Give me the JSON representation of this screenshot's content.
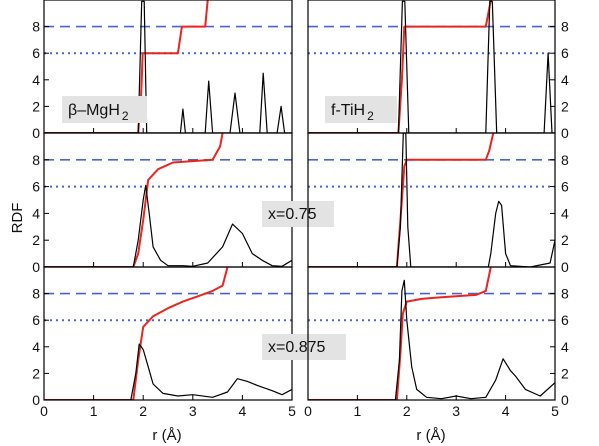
{
  "chart_data": {
    "type": "line",
    "layout": "3x2 grid",
    "ylabel": "RDF",
    "xlabel": "r (Å)",
    "xlim": [
      0,
      5
    ],
    "ylim": [
      0,
      10
    ],
    "x_ticks": [
      "0",
      "1",
      "2",
      "3",
      "4",
      "5"
    ],
    "y_ticks": [
      "0",
      "2",
      "4",
      "6",
      "8"
    ],
    "reference_lines": {
      "dashed": 8,
      "dotted": 6
    },
    "colors": {
      "rdf": "#000000",
      "coordination": "#e8261f",
      "reference": "#4a63d4",
      "label_box": "#e3e3e3"
    },
    "panels": [
      {
        "label_parts": [
          "β–MgH",
          "2"
        ],
        "rdf": [
          [
            0,
            0
          ],
          [
            1.9,
            0
          ],
          [
            1.97,
            9.9
          ],
          [
            2.02,
            9.9
          ],
          [
            2.07,
            0
          ],
          [
            2.75,
            0
          ],
          [
            2.8,
            1.8
          ],
          [
            2.85,
            0
          ],
          [
            3.25,
            0
          ],
          [
            3.32,
            3.9
          ],
          [
            3.4,
            0
          ],
          [
            3.75,
            0
          ],
          [
            3.85,
            3
          ],
          [
            3.95,
            0
          ],
          [
            4.35,
            0
          ],
          [
            4.42,
            4.5
          ],
          [
            4.5,
            0
          ],
          [
            4.7,
            0
          ],
          [
            4.78,
            2
          ],
          [
            4.85,
            0
          ],
          [
            5,
            0
          ]
        ],
        "coordination": [
          [
            0,
            0
          ],
          [
            1.9,
            0
          ],
          [
            1.96,
            3
          ],
          [
            1.99,
            6
          ],
          [
            2.7,
            6
          ],
          [
            2.78,
            8
          ],
          [
            3.25,
            8
          ],
          [
            3.3,
            10
          ]
        ]
      },
      {
        "label_parts": [
          "f-TiH",
          "2"
        ],
        "rdf": [
          [
            0,
            0
          ],
          [
            1.83,
            0
          ],
          [
            1.91,
            9.9
          ],
          [
            1.96,
            9.9
          ],
          [
            2.04,
            0
          ],
          [
            3.6,
            0
          ],
          [
            3.68,
            9.9
          ],
          [
            3.73,
            9.9
          ],
          [
            3.82,
            0
          ],
          [
            4.78,
            0
          ],
          [
            4.86,
            6
          ],
          [
            4.94,
            0
          ],
          [
            5,
            0
          ]
        ],
        "coordination": [
          [
            0,
            0
          ],
          [
            1.83,
            0
          ],
          [
            1.9,
            4
          ],
          [
            1.95,
            8
          ],
          [
            3.6,
            8
          ],
          [
            3.7,
            10
          ]
        ]
      },
      {
        "label_parts": [
          "x=0.75"
        ],
        "rdf": [
          [
            0,
            0
          ],
          [
            1.8,
            0
          ],
          [
            1.9,
            2
          ],
          [
            2.0,
            5
          ],
          [
            2.05,
            6.1
          ],
          [
            2.12,
            4
          ],
          [
            2.2,
            1.5
          ],
          [
            2.35,
            0.5
          ],
          [
            2.5,
            0.1
          ],
          [
            2.8,
            0.1
          ],
          [
            3,
            0.05
          ],
          [
            3.3,
            0.3
          ],
          [
            3.6,
            1.5
          ],
          [
            3.8,
            3.2
          ],
          [
            4.0,
            2.5
          ],
          [
            4.2,
            1
          ],
          [
            4.4,
            0.5
          ],
          [
            4.6,
            0.1
          ],
          [
            4.8,
            0.05
          ],
          [
            5,
            0.5
          ]
        ],
        "coordination": [
          [
            0,
            0
          ],
          [
            1.8,
            0
          ],
          [
            1.9,
            1
          ],
          [
            2.0,
            3.5
          ],
          [
            2.1,
            6.5
          ],
          [
            2.3,
            7.3
          ],
          [
            2.6,
            7.8
          ],
          [
            3.0,
            7.9
          ],
          [
            3.4,
            8
          ],
          [
            3.55,
            9
          ],
          [
            3.6,
            10
          ]
        ]
      },
      {
        "label_parts": [],
        "rdf": [
          [
            0,
            0
          ],
          [
            1.8,
            0
          ],
          [
            1.87,
            3
          ],
          [
            1.93,
            10
          ],
          [
            1.98,
            10
          ],
          [
            2.02,
            3
          ],
          [
            2.08,
            0
          ],
          [
            3.65,
            0
          ],
          [
            3.7,
            1
          ],
          [
            3.8,
            4
          ],
          [
            3.86,
            4.9
          ],
          [
            3.92,
            4.6
          ],
          [
            4.0,
            1
          ],
          [
            4.1,
            0.1
          ],
          [
            4.5,
            0
          ],
          [
            4.9,
            0.3
          ],
          [
            5,
            2
          ]
        ],
        "coordination": [
          [
            0,
            0
          ],
          [
            1.8,
            0
          ],
          [
            1.88,
            4
          ],
          [
            1.95,
            7.5
          ],
          [
            2.0,
            8
          ],
          [
            3.6,
            8
          ],
          [
            3.67,
            8.7
          ],
          [
            3.75,
            10
          ]
        ]
      },
      {
        "label_parts": [
          "x=0.875"
        ],
        "rdf": [
          [
            0,
            0
          ],
          [
            1.75,
            0
          ],
          [
            1.85,
            2
          ],
          [
            1.92,
            4.2
          ],
          [
            2,
            3.8
          ],
          [
            2.1,
            2.5
          ],
          [
            2.2,
            1.2
          ],
          [
            2.4,
            0.5
          ],
          [
            2.7,
            0.3
          ],
          [
            3,
            0.4
          ],
          [
            3.4,
            0.2
          ],
          [
            3.7,
            0.6
          ],
          [
            3.9,
            1.6
          ],
          [
            4.1,
            1.4
          ],
          [
            4.3,
            1.1
          ],
          [
            4.6,
            0.7
          ],
          [
            4.8,
            0.4
          ],
          [
            5,
            0.8
          ]
        ],
        "coordination": [
          [
            0,
            0
          ],
          [
            1.8,
            0
          ],
          [
            1.9,
            3
          ],
          [
            2.0,
            5.5
          ],
          [
            2.2,
            6.3
          ],
          [
            2.5,
            6.9
          ],
          [
            2.8,
            7.4
          ],
          [
            3.1,
            7.8
          ],
          [
            3.4,
            8.2
          ],
          [
            3.6,
            8.6
          ],
          [
            3.7,
            10
          ]
        ]
      },
      {
        "label_parts": [],
        "rdf": [
          [
            0,
            0
          ],
          [
            1.77,
            0
          ],
          [
            1.85,
            3
          ],
          [
            1.9,
            8.2
          ],
          [
            1.95,
            9
          ],
          [
            2.0,
            6
          ],
          [
            2.1,
            2.5
          ],
          [
            2.2,
            0.8
          ],
          [
            2.4,
            0.2
          ],
          [
            2.7,
            0.1
          ],
          [
            3.0,
            0.3
          ],
          [
            3.3,
            0.1
          ],
          [
            3.6,
            0.2
          ],
          [
            3.8,
            1.5
          ],
          [
            3.95,
            3.1
          ],
          [
            4.1,
            2.2
          ],
          [
            4.2,
            1.8
          ],
          [
            4.4,
            0.8
          ],
          [
            4.7,
            0.3
          ],
          [
            5,
            1.3
          ]
        ],
        "coordination": [
          [
            0,
            0
          ],
          [
            1.8,
            0
          ],
          [
            1.87,
            3.5
          ],
          [
            1.92,
            6.5
          ],
          [
            2.0,
            7.4
          ],
          [
            2.3,
            7.6
          ],
          [
            2.6,
            7.7
          ],
          [
            3.0,
            7.8
          ],
          [
            3.4,
            7.9
          ],
          [
            3.6,
            8.2
          ],
          [
            3.7,
            10
          ]
        ]
      }
    ]
  }
}
